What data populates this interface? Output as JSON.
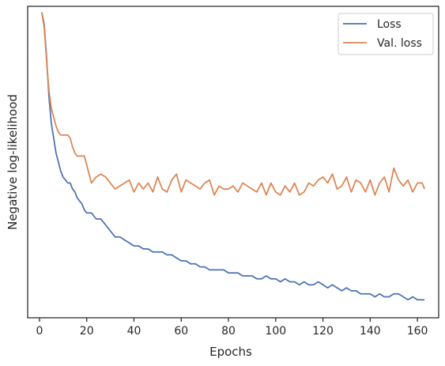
{
  "chart_data": {
    "type": "line",
    "title": "",
    "xlabel": "Epochs",
    "ylabel": "Negative log-likelihood",
    "xlim": [
      -5,
      169
    ],
    "ylim": [
      -0.02,
      1.02
    ],
    "x_ticks": [
      0,
      20,
      40,
      60,
      80,
      100,
      120,
      140,
      160
    ],
    "y_tick_labels_shown": false,
    "grid": false,
    "legend_position": "top-right",
    "series": [
      {
        "name": "Loss",
        "color": "#4c72b0",
        "x": [
          1,
          2,
          3,
          4,
          5,
          6,
          7,
          8,
          9,
          10,
          11,
          12,
          13,
          14,
          15,
          16,
          17,
          18,
          19,
          20,
          22,
          24,
          26,
          28,
          30,
          32,
          34,
          36,
          38,
          40,
          42,
          44,
          46,
          48,
          50,
          52,
          54,
          56,
          58,
          60,
          62,
          64,
          66,
          68,
          70,
          72,
          74,
          76,
          78,
          80,
          82,
          84,
          86,
          88,
          90,
          92,
          94,
          96,
          98,
          100,
          102,
          104,
          106,
          108,
          110,
          112,
          114,
          116,
          118,
          120,
          122,
          124,
          126,
          128,
          130,
          132,
          134,
          136,
          138,
          140,
          142,
          144,
          146,
          148,
          150,
          152,
          154,
          156,
          158,
          160,
          162,
          163
        ],
        "values": [
          1.0,
          0.96,
          0.85,
          0.72,
          0.63,
          0.58,
          0.53,
          0.5,
          0.47,
          0.45,
          0.44,
          0.43,
          0.43,
          0.41,
          0.4,
          0.38,
          0.37,
          0.36,
          0.34,
          0.33,
          0.33,
          0.31,
          0.31,
          0.29,
          0.27,
          0.25,
          0.25,
          0.24,
          0.23,
          0.22,
          0.22,
          0.21,
          0.21,
          0.2,
          0.2,
          0.2,
          0.19,
          0.19,
          0.18,
          0.17,
          0.17,
          0.16,
          0.16,
          0.15,
          0.15,
          0.14,
          0.14,
          0.14,
          0.14,
          0.13,
          0.13,
          0.13,
          0.12,
          0.12,
          0.12,
          0.11,
          0.11,
          0.12,
          0.11,
          0.11,
          0.1,
          0.11,
          0.1,
          0.1,
          0.09,
          0.1,
          0.09,
          0.09,
          0.1,
          0.09,
          0.08,
          0.09,
          0.08,
          0.07,
          0.08,
          0.07,
          0.07,
          0.06,
          0.06,
          0.06,
          0.05,
          0.06,
          0.05,
          0.05,
          0.06,
          0.06,
          0.05,
          0.04,
          0.05,
          0.04,
          0.04,
          0.04
        ]
      },
      {
        "name": "Val. loss",
        "color": "#dd8452",
        "x": [
          1,
          2,
          3,
          4,
          5,
          6,
          7,
          8,
          9,
          10,
          11,
          12,
          13,
          14,
          15,
          16,
          17,
          18,
          19,
          20,
          22,
          24,
          26,
          28,
          30,
          32,
          34,
          36,
          38,
          40,
          42,
          44,
          46,
          48,
          50,
          52,
          54,
          56,
          58,
          60,
          62,
          64,
          66,
          68,
          70,
          72,
          74,
          76,
          78,
          80,
          82,
          84,
          86,
          88,
          90,
          92,
          94,
          96,
          98,
          100,
          102,
          104,
          106,
          108,
          110,
          112,
          114,
          116,
          118,
          120,
          122,
          124,
          126,
          128,
          130,
          132,
          134,
          136,
          138,
          140,
          142,
          144,
          146,
          148,
          150,
          152,
          154,
          156,
          158,
          160,
          162,
          163
        ],
        "values": [
          1.0,
          0.95,
          0.84,
          0.74,
          0.68,
          0.65,
          0.62,
          0.6,
          0.59,
          0.59,
          0.59,
          0.59,
          0.58,
          0.55,
          0.53,
          0.52,
          0.52,
          0.52,
          0.52,
          0.49,
          0.43,
          0.45,
          0.46,
          0.45,
          0.43,
          0.41,
          0.42,
          0.43,
          0.44,
          0.4,
          0.43,
          0.41,
          0.43,
          0.4,
          0.45,
          0.41,
          0.4,
          0.44,
          0.46,
          0.4,
          0.44,
          0.43,
          0.42,
          0.41,
          0.43,
          0.44,
          0.39,
          0.42,
          0.41,
          0.41,
          0.42,
          0.4,
          0.43,
          0.42,
          0.41,
          0.4,
          0.43,
          0.39,
          0.43,
          0.4,
          0.39,
          0.42,
          0.4,
          0.43,
          0.39,
          0.4,
          0.43,
          0.42,
          0.44,
          0.45,
          0.43,
          0.46,
          0.41,
          0.42,
          0.45,
          0.4,
          0.44,
          0.43,
          0.4,
          0.44,
          0.39,
          0.43,
          0.45,
          0.4,
          0.48,
          0.44,
          0.42,
          0.44,
          0.4,
          0.43,
          0.43,
          0.41
        ]
      }
    ]
  }
}
